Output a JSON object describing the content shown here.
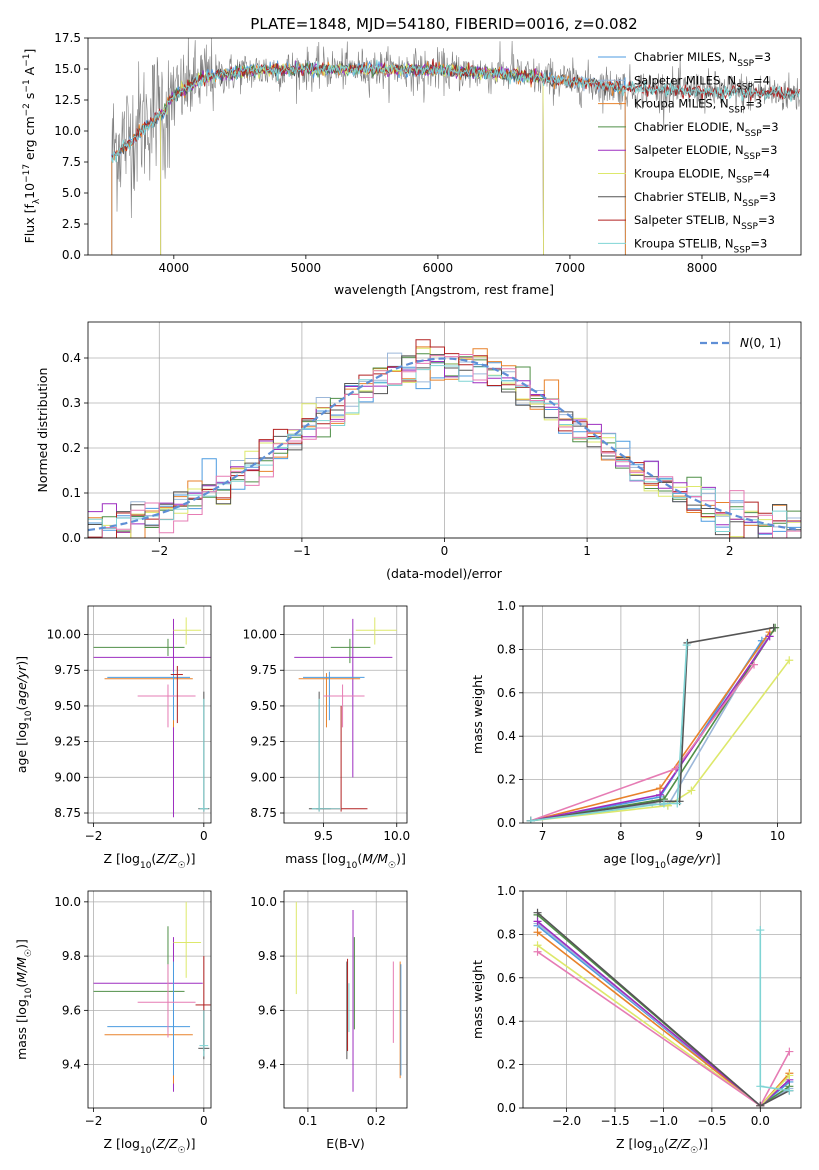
{
  "figure_title": "PLATE=1848, MJD=54180, FIBERID=0016, z=0.082",
  "colors": {
    "Chabrier MILES": "#4c9be0",
    "Salpeter MILES": "#9cb7d9",
    "Kroupa MILES": "#e8822b",
    "Chabrier ELODIE": "#4f8f47",
    "Salpeter ELODIE": "#9d2ec0",
    "Kroupa ELODIE": "#dde86b",
    "Chabrier STELIB": "#555555",
    "Salpeter STELIB": "#b22222",
    "Kroupa STELIB": "#7fd4d4",
    "pink": "#e67cb4",
    "gaussian": "#5f8fd6",
    "data": "#7f7f7f"
  },
  "chart_data": [
    {
      "type": "line",
      "title": "PLATE=1848, MJD=54180, FIBERID=0016, z=0.082",
      "xlabel": "wavelength [Angstrom, rest frame]",
      "ylabel": "Flux [f_λ 10^-17 erg cm^-2 s^-1 A^-1]",
      "xlim": [
        3350,
        8750
      ],
      "ylim": [
        0,
        17.5
      ],
      "xticks": [
        "4000",
        "5000",
        "6000",
        "7000",
        "8000"
      ],
      "yticks": [
        "0.0",
        "2.5",
        "5.0",
        "7.5",
        "10.0",
        "12.5",
        "15.0",
        "17.5"
      ],
      "legend": [
        "Chabrier MILES, N_SSP=3",
        "Salpeter MILES, N_SSP=4",
        "Kroupa MILES, N_SSP=3",
        "Chabrier ELODIE, N_SSP=3",
        "Salpeter ELODIE, N_SSP=3",
        "Kroupa ELODIE, N_SSP=4",
        "Chabrier STELIB, N_SSP=3",
        "Salpeter STELIB, N_SSP=3",
        "Kroupa STELIB, N_SSP=3"
      ],
      "legend_placement": "right",
      "continuum": [
        [
          3530,
          8.5
        ],
        [
          3700,
          10.0
        ],
        [
          3850,
          11.5
        ],
        [
          4000,
          12.8
        ],
        [
          4200,
          14.2
        ],
        [
          4500,
          14.8
        ],
        [
          5000,
          15.0
        ],
        [
          5500,
          15.0
        ],
        [
          6000,
          14.9
        ],
        [
          6500,
          14.6
        ],
        [
          7000,
          14.0
        ],
        [
          7400,
          13.5
        ],
        [
          8000,
          13.2
        ],
        [
          8700,
          13.0
        ]
      ]
    },
    {
      "type": "histogram",
      "xlabel": "(data-model)/error",
      "ylabel": "Normed distribution",
      "xlim": [
        -2.5,
        2.5
      ],
      "ylim": [
        0,
        0.48
      ],
      "xticks": [
        "−2",
        "−1",
        "0",
        "1",
        "2"
      ],
      "yticks": [
        "0.0",
        "0.1",
        "0.2",
        "0.3",
        "0.4"
      ],
      "legend": [
        "N(0,1)"
      ],
      "legend_placement": "top-right",
      "bin_width": 0.1
    },
    {
      "type": "errorbar",
      "xlabel": "Z [log10(Z/Z☉)]",
      "ylabel": "age  [log10(age/yr)]",
      "xlim": [
        -2.1,
        0.13
      ],
      "ylim": [
        8.68,
        10.2
      ],
      "xticks": [
        "−2",
        "0"
      ],
      "yticks": [
        "8.75",
        "9.00",
        "9.25",
        "9.50",
        "9.75",
        "10.00"
      ],
      "points": [
        {
          "c": "Chabrier ELODIE",
          "x": -0.65,
          "y": 9.91,
          "xe": [
            -2.0,
            -0.35
          ],
          "ye": [
            9.85,
            9.97
          ]
        },
        {
          "c": "Salpeter ELODIE",
          "x": -0.55,
          "y": 9.84,
          "xe": [
            -2.0,
            0.12
          ],
          "ye": [
            8.72,
            10.11
          ]
        },
        {
          "c": "Kroupa ELODIE",
          "x": -0.32,
          "y": 10.03,
          "xe": [
            -0.55,
            -0.05
          ],
          "ye": [
            9.93,
            10.12
          ]
        },
        {
          "c": "Kroupa MILES",
          "x": -0.55,
          "y": 9.69,
          "xe": [
            -1.8,
            -0.2
          ],
          "ye": [
            9.35,
            9.73
          ]
        },
        {
          "c": "Chabrier MILES",
          "x": -0.55,
          "y": 9.7,
          "xe": [
            -1.75,
            -0.25
          ],
          "ye": [
            9.4,
            9.74
          ]
        },
        {
          "c": "pink",
          "x": -0.65,
          "y": 9.57,
          "xe": [
            -1.2,
            -0.15
          ],
          "ye": [
            9.35,
            9.65
          ]
        },
        {
          "c": "Salpeter STELIB",
          "x": -0.48,
          "y": 9.72,
          "xe": [
            -0.6,
            -0.38
          ],
          "ye": [
            9.38,
            9.78
          ]
        },
        {
          "c": "Chabrier STELIB",
          "x": 0.0,
          "y": 8.78,
          "xe": [
            -0.1,
            0.1
          ],
          "ye": [
            8.76,
            9.6
          ]
        },
        {
          "c": "Kroupa STELIB",
          "x": 0.0,
          "y": 8.78,
          "xe": [
            -0.08,
            0.08
          ],
          "ye": [
            8.76,
            9.55
          ]
        }
      ]
    },
    {
      "type": "errorbar",
      "xlabel": "mass [log10(M/M☉)]",
      "ylabel": "",
      "xlim": [
        9.23,
        10.07
      ],
      "ylim": [
        8.68,
        10.2
      ],
      "xticks": [
        "9.5",
        "10.0"
      ],
      "yticks": [
        "8.75",
        "9.00",
        "9.25",
        "9.50",
        "9.75",
        "10.00"
      ],
      "points": [
        {
          "c": "Chabrier ELODIE",
          "x": 9.68,
          "y": 9.91,
          "xe": [
            9.55,
            9.82
          ],
          "ye": [
            9.8,
            9.97
          ]
        },
        {
          "c": "Salpeter ELODIE",
          "x": 9.7,
          "y": 9.84,
          "xe": [
            9.3,
            9.97
          ],
          "ye": [
            9.0,
            10.11
          ]
        },
        {
          "c": "Kroupa ELODIE",
          "x": 9.85,
          "y": 10.03,
          "xe": [
            9.72,
            10.0
          ],
          "ye": [
            9.93,
            10.12
          ]
        },
        {
          "c": "Kroupa MILES",
          "x": 9.52,
          "y": 9.69,
          "xe": [
            9.33,
            9.75
          ],
          "ye": [
            9.35,
            9.73
          ]
        },
        {
          "c": "Chabrier MILES",
          "x": 9.54,
          "y": 9.7,
          "xe": [
            9.36,
            9.78
          ],
          "ye": [
            9.4,
            9.74
          ]
        },
        {
          "c": "pink",
          "x": 9.63,
          "y": 9.57,
          "xe": [
            9.5,
            9.78
          ],
          "ye": [
            9.35,
            9.65
          ]
        },
        {
          "c": "Salpeter STELIB",
          "x": 9.62,
          "y": 8.78,
          "xe": [
            9.45,
            9.8
          ],
          "ye": [
            8.76,
            9.5
          ]
        },
        {
          "c": "Chabrier STELIB",
          "x": 9.47,
          "y": 8.78,
          "xe": [
            9.4,
            9.55
          ],
          "ye": [
            8.76,
            9.6
          ]
        },
        {
          "c": "Kroupa STELIB",
          "x": 9.47,
          "y": 8.78,
          "xe": [
            9.42,
            9.62
          ],
          "ye": [
            8.76,
            9.55
          ]
        }
      ]
    },
    {
      "type": "line",
      "xlabel": "age  [log10(age/yr)]",
      "ylabel": "mass weight",
      "xlim": [
        6.75,
        10.3
      ],
      "ylim": [
        0,
        1.0
      ],
      "xticks": [
        "7",
        "8",
        "9",
        "10"
      ],
      "yticks": [
        "0.0",
        "0.2",
        "0.4",
        "0.6",
        "0.8",
        "1.0"
      ],
      "series": [
        {
          "c": "Chabrier MILES",
          "points": [
            [
              6.85,
              0.01
            ],
            [
              8.5,
              0.12
            ],
            [
              9.8,
              0.84
            ]
          ]
        },
        {
          "c": "Salpeter MILES",
          "points": [
            [
              6.85,
              0.01
            ],
            [
              8.4,
              0.09
            ],
            [
              8.6,
              0.08
            ],
            [
              9.85,
              0.85
            ]
          ]
        },
        {
          "c": "Kroupa MILES",
          "points": [
            [
              6.85,
              0.01
            ],
            [
              8.5,
              0.16
            ],
            [
              9.9,
              0.88
            ]
          ]
        },
        {
          "c": "Chabrier ELODIE",
          "points": [
            [
              6.85,
              0.01
            ],
            [
              8.55,
              0.11
            ],
            [
              9.97,
              0.9
            ]
          ]
        },
        {
          "c": "Salpeter ELODIE",
          "points": [
            [
              6.85,
              0.01
            ],
            [
              8.5,
              0.13
            ],
            [
              9.9,
              0.86
            ]
          ]
        },
        {
          "c": "Kroupa ELODIE",
          "points": [
            [
              6.85,
              0.01
            ],
            [
              8.6,
              0.08
            ],
            [
              8.9,
              0.15
            ],
            [
              10.15,
              0.75
            ]
          ]
        },
        {
          "c": "pink",
          "points": [
            [
              6.85,
              0.01
            ],
            [
              8.7,
              0.25
            ],
            [
              9.7,
              0.73
            ]
          ]
        },
        {
          "c": "Chabrier STELIB",
          "points": [
            [
              6.85,
              0.01
            ],
            [
              8.5,
              0.1
            ],
            [
              8.75,
              0.1
            ],
            [
              8.85,
              0.83
            ],
            [
              9.95,
              0.9
            ]
          ]
        },
        {
          "c": "Kroupa STELIB",
          "points": [
            [
              6.85,
              0.01
            ],
            [
              8.55,
              0.09
            ],
            [
              8.72,
              0.09
            ],
            [
              8.84,
              0.82
            ]
          ]
        }
      ]
    },
    {
      "type": "errorbar",
      "xlabel": "Z [log10(Z/Z☉)]",
      "ylabel": "mass [log10(M/M☉)]",
      "xlim": [
        -2.1,
        0.13
      ],
      "ylim": [
        9.24,
        10.04
      ],
      "xticks": [
        "−2",
        "0"
      ],
      "yticks": [
        "9.4",
        "9.6",
        "9.8",
        "10.0"
      ],
      "points": [
        {
          "c": "Chabrier ELODIE",
          "x": -0.65,
          "y": 9.67,
          "xe": [
            -2.0,
            -0.35
          ],
          "ye": [
            9.52,
            9.91
          ]
        },
        {
          "c": "Salpeter ELODIE",
          "x": -0.55,
          "y": 9.7,
          "xe": [
            -2.0,
            -0.02
          ],
          "ye": [
            9.3,
            9.87
          ]
        },
        {
          "c": "Kroupa ELODIE",
          "x": -0.32,
          "y": 9.85,
          "xe": [
            -0.55,
            -0.05
          ],
          "ye": [
            9.72,
            10.0
          ]
        },
        {
          "c": "Kroupa MILES",
          "x": -0.55,
          "y": 9.51,
          "xe": [
            -1.8,
            -0.2
          ],
          "ye": [
            9.33,
            9.77
          ]
        },
        {
          "c": "Chabrier MILES",
          "x": -0.55,
          "y": 9.54,
          "xe": [
            -1.75,
            -0.25
          ],
          "ye": [
            9.36,
            9.78
          ]
        },
        {
          "c": "pink",
          "x": -0.65,
          "y": 9.63,
          "xe": [
            -1.2,
            -0.15
          ],
          "ye": [
            9.5,
            9.77
          ]
        },
        {
          "c": "Salpeter STELIB",
          "x": 0.0,
          "y": 9.62,
          "xe": [
            -0.15,
            0.12
          ],
          "ye": [
            9.45,
            9.8
          ]
        },
        {
          "c": "Chabrier STELIB",
          "x": 0.0,
          "y": 9.46,
          "xe": [
            -0.1,
            0.1
          ],
          "ye": [
            9.42,
            9.6
          ]
        },
        {
          "c": "Kroupa STELIB",
          "x": 0.0,
          "y": 9.47,
          "xe": [
            -0.08,
            0.08
          ],
          "ye": [
            9.43,
            9.6
          ]
        }
      ]
    },
    {
      "type": "errorbar",
      "xlabel": "E(B-V)",
      "ylabel": "",
      "xlim": [
        0.065,
        0.245
      ],
      "ylim": [
        9.24,
        10.04
      ],
      "xticks": [
        "0.1",
        "0.2"
      ],
      "yticks": [
        "9.4",
        "9.6",
        "9.8",
        "10.0"
      ],
      "points": [
        {
          "c": "Kroupa ELODIE",
          "x": 0.083,
          "y": 9.85,
          "xe": [
            0.083,
            0.083
          ],
          "ye": [
            9.66,
            10.0
          ]
        },
        {
          "c": "Chabrier STELIB",
          "x": 0.157,
          "y": 9.6,
          "xe": [
            0.157,
            0.157
          ],
          "ye": [
            9.42,
            9.78
          ]
        },
        {
          "c": "Salpeter STELIB",
          "x": 0.158,
          "y": 9.62,
          "xe": [
            0.158,
            0.158
          ],
          "ye": [
            9.45,
            9.79
          ]
        },
        {
          "c": "Kroupa STELIB",
          "x": 0.16,
          "y": 9.6,
          "xe": [
            0.16,
            0.16
          ],
          "ye": [
            9.52,
            9.7
          ]
        },
        {
          "c": "Salpeter ELODIE",
          "x": 0.166,
          "y": 9.6,
          "xe": [
            0.166,
            0.166
          ],
          "ye": [
            9.3,
            9.97
          ]
        },
        {
          "c": "Chabrier ELODIE",
          "x": 0.168,
          "y": 9.65,
          "xe": [
            0.168,
            0.168
          ],
          "ye": [
            9.53,
            9.87
          ]
        },
        {
          "c": "pink",
          "x": 0.225,
          "y": 9.63,
          "xe": [
            0.225,
            0.225
          ],
          "ye": [
            9.48,
            9.78
          ]
        },
        {
          "c": "Kroupa MILES",
          "x": 0.235,
          "y": 9.52,
          "xe": [
            0.235,
            0.235
          ],
          "ye": [
            9.35,
            9.78
          ]
        },
        {
          "c": "Chabrier MILES",
          "x": 0.236,
          "y": 9.54,
          "xe": [
            0.236,
            0.236
          ],
          "ye": [
            9.36,
            9.77
          ]
        }
      ]
    },
    {
      "type": "line",
      "xlabel": "Z [log10(Z/Z☉)]",
      "ylabel": "mass weight",
      "xlim": [
        -2.45,
        0.42
      ],
      "ylim": [
        0,
        1.0
      ],
      "xticks": [
        "−2.0",
        "−1.5",
        "−1.0",
        "−0.5",
        "0.0"
      ],
      "yticks": [
        "0.0",
        "0.2",
        "0.4",
        "0.6",
        "0.8",
        "1.0"
      ],
      "series": [
        {
          "c": "Chabrier MILES",
          "points": [
            [
              -2.3,
              0.84
            ],
            [
              0.0,
              0.01
            ],
            [
              0.3,
              0.12
            ]
          ]
        },
        {
          "c": "Salpeter MILES",
          "points": [
            [
              -2.3,
              0.85
            ],
            [
              0.0,
              0.01
            ],
            [
              0.3,
              0.09
            ]
          ]
        },
        {
          "c": "Kroupa MILES",
          "points": [
            [
              -2.3,
              0.81
            ],
            [
              0.0,
              0.01
            ],
            [
              0.3,
              0.16
            ]
          ]
        },
        {
          "c": "Chabrier ELODIE",
          "points": [
            [
              -2.3,
              0.89
            ],
            [
              0.0,
              0.01
            ],
            [
              0.3,
              0.1
            ]
          ]
        },
        {
          "c": "Salpeter ELODIE",
          "points": [
            [
              -2.3,
              0.86
            ],
            [
              0.0,
              0.01
            ],
            [
              0.3,
              0.13
            ]
          ]
        },
        {
          "c": "Kroupa ELODIE",
          "points": [
            [
              -2.3,
              0.75
            ],
            [
              0.0,
              0.01
            ],
            [
              0.3,
              0.15
            ]
          ]
        },
        {
          "c": "pink",
          "points": [
            [
              -2.3,
              0.72
            ],
            [
              0.0,
              0.01
            ],
            [
              0.3,
              0.26
            ]
          ]
        },
        {
          "c": "Chabrier STELIB",
          "points": [
            [
              -2.3,
              0.9
            ],
            [
              0.0,
              0.01
            ],
            [
              0.3,
              0.08
            ]
          ]
        },
        {
          "c": "Kroupa STELIB",
          "points": [
            [
              0.0,
              0.82
            ],
            [
              0.0,
              0.1
            ],
            [
              0.3,
              0.08
            ]
          ]
        }
      ]
    }
  ]
}
